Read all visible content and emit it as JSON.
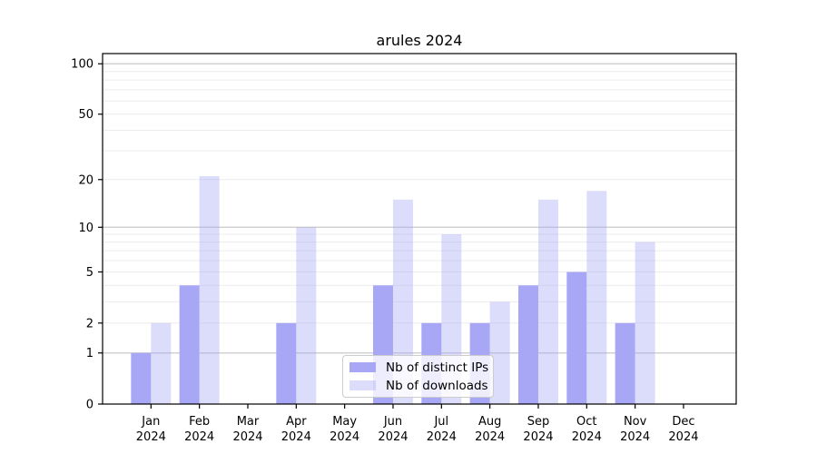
{
  "chart_data": {
    "type": "bar",
    "title": "arules 2024",
    "categories": [
      "Jan",
      "Feb",
      "Mar",
      "Apr",
      "May",
      "Jun",
      "Jul",
      "Aug",
      "Sep",
      "Oct",
      "Nov",
      "Dec"
    ],
    "category_year": "2024",
    "series": [
      {
        "name": "Nb of distinct IPs",
        "color": "#a7a7f5",
        "opacity": 1,
        "values": [
          1,
          4,
          0,
          2,
          0,
          4,
          2,
          2,
          4,
          5,
          2,
          0
        ]
      },
      {
        "name": "Nb of downloads",
        "color": "#a7a7f5",
        "opacity": 0.4,
        "values": [
          2,
          21,
          0,
          10,
          0,
          15,
          9,
          3,
          15,
          17,
          8,
          0
        ]
      }
    ],
    "xlabel": "",
    "ylabel": "",
    "scale": "log1p",
    "ylim": [
      0,
      115
    ],
    "y_ticks": [
      0,
      1,
      2,
      5,
      10,
      20,
      50,
      100
    ],
    "major_gridlines": [
      1,
      10,
      100
    ],
    "minor_gridlines": [
      2,
      3,
      4,
      5,
      6,
      7,
      8,
      9,
      20,
      30,
      40,
      50,
      60,
      70,
      80,
      90
    ],
    "grid": true,
    "legend_position": "lower center",
    "colors": {
      "axis": "#000000",
      "text": "#000000",
      "major_grid": "#c9c9c9",
      "minor_grid": "#ececec",
      "legend_border": "#cccccc"
    }
  }
}
